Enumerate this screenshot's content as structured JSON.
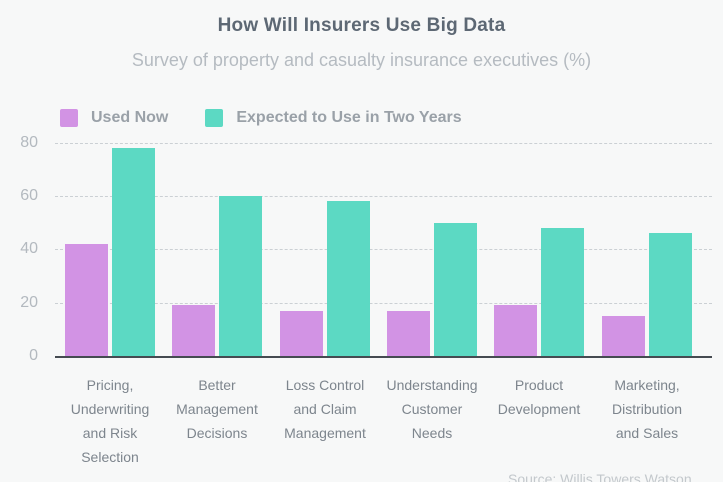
{
  "header": {
    "title": "How Will Insurers Use Big Data",
    "subtitle": "Survey of property and casualty insurance executives (%)"
  },
  "legend": [
    {
      "label": "Used Now",
      "color": "#d293e4"
    },
    {
      "label": "Expected to Use in Two Years",
      "color": "#5cd9c3"
    }
  ],
  "source_note": "Source: Willis Towers Watson",
  "colors": {
    "background": "#f7f8f8",
    "title": "#5d6874",
    "subtitle": "#b5bbc1",
    "legend_text": "#9aa1a8",
    "used_now": "#d293e4",
    "expected": "#5cd9c3",
    "gridline": "#cbd0d4",
    "axis": "#454b51",
    "ytick_text": "#b3b9bf",
    "xlabel_text": "#7d858d",
    "source_text": "#c3c8cc"
  },
  "chart_data": {
    "type": "bar",
    "title": "How Will Insurers Use Big Data",
    "subtitle": "Survey of property and casualty insurance executives (%)",
    "categories": [
      "Pricing,\nUnderwriting\nand Risk\nSelection",
      "Better\nManagement\nDecisions",
      "Loss Control\nand Claim\nManagement",
      "Understanding\nCustomer\nNeeds",
      "Product\nDevelopment",
      "Marketing,\nDistribution\nand Sales"
    ],
    "series": [
      {
        "name": "Used Now",
        "color": "#d293e4",
        "values": [
          42,
          19,
          17,
          17,
          19,
          15
        ]
      },
      {
        "name": "Expected to Use in Two Years",
        "color": "#5cd9c3",
        "values": [
          78,
          60,
          58,
          50,
          48,
          46
        ]
      }
    ],
    "xlabel": "",
    "ylabel": "",
    "ylim": [
      0,
      80
    ],
    "yticks": [
      0,
      20,
      40,
      60,
      80
    ],
    "grid": "horizontal-dashed",
    "legend_position": "top-left",
    "source": "Source: Willis Towers Watson"
  }
}
